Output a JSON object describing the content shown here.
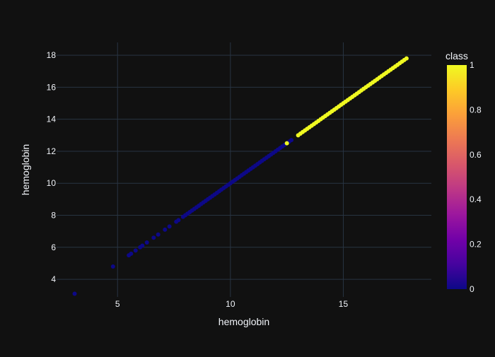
{
  "chart_data": {
    "type": "scatter",
    "title": "",
    "xlabel": "hemoglobin",
    "ylabel": "hemoglobin",
    "xlim": [
      2.3,
      18.9
    ],
    "ylim": [
      2.9,
      18.8
    ],
    "x_ticks": [
      5,
      10,
      15
    ],
    "y_ticks": [
      4,
      6,
      8,
      10,
      12,
      14,
      16,
      18
    ],
    "grid": true,
    "colorbar": {
      "title": "class",
      "range": [
        0,
        1
      ],
      "ticks": [
        0,
        0.2,
        0.4,
        0.6,
        0.8,
        1
      ],
      "colorscale": [
        "#0d0887",
        "#46039f",
        "#7201a8",
        "#9c179e",
        "#bd3786",
        "#d8576b",
        "#ed7953",
        "#fb9f3a",
        "#fdca26",
        "#f0f921"
      ]
    },
    "series": [
      {
        "class": 0,
        "x": [
          3.1,
          4.8,
          5.5,
          5.6,
          5.8,
          6.0,
          6.1,
          6.3,
          6.6,
          6.8,
          7.1,
          7.3,
          7.6,
          7.7,
          7.9,
          8.0,
          8.1,
          8.2,
          8.3,
          8.4,
          8.5,
          8.6,
          8.7,
          8.8,
          8.9,
          9.0,
          9.1,
          9.2,
          9.3,
          9.4,
          9.5,
          9.6,
          9.7,
          9.8,
          9.9,
          10.0,
          10.1,
          10.2,
          10.3,
          10.4,
          10.5,
          10.6,
          10.7,
          10.8,
          10.9,
          11.0,
          11.1,
          11.2,
          11.3,
          11.4,
          11.5,
          11.6,
          11.7,
          11.8,
          11.9,
          12.0,
          12.1,
          12.2,
          12.3,
          12.4,
          12.6,
          12.7
        ],
        "y": [
          3.1,
          4.8,
          5.5,
          5.6,
          5.8,
          6.0,
          6.1,
          6.3,
          6.6,
          6.8,
          7.1,
          7.3,
          7.6,
          7.7,
          7.9,
          8.0,
          8.1,
          8.2,
          8.3,
          8.4,
          8.5,
          8.6,
          8.7,
          8.8,
          8.9,
          9.0,
          9.1,
          9.2,
          9.3,
          9.4,
          9.5,
          9.6,
          9.7,
          9.8,
          9.9,
          10.0,
          10.1,
          10.2,
          10.3,
          10.4,
          10.5,
          10.6,
          10.7,
          10.8,
          10.9,
          11.0,
          11.1,
          11.2,
          11.3,
          11.4,
          11.5,
          11.6,
          11.7,
          11.8,
          11.9,
          12.0,
          12.1,
          12.2,
          12.3,
          12.4,
          12.6,
          12.7
        ]
      },
      {
        "class": 1,
        "x": [
          12.5,
          13.0,
          13.1,
          13.2,
          13.3,
          13.4,
          13.5,
          13.6,
          13.7,
          13.8,
          13.9,
          14.0,
          14.1,
          14.2,
          14.3,
          14.4,
          14.5,
          14.6,
          14.7,
          14.8,
          14.9,
          15.0,
          15.1,
          15.2,
          15.3,
          15.4,
          15.5,
          15.6,
          15.7,
          15.8,
          15.9,
          16.0,
          16.1,
          16.2,
          16.3,
          16.4,
          16.5,
          16.6,
          16.7,
          16.8,
          16.9,
          17.0,
          17.1,
          17.2,
          17.3,
          17.4,
          17.5,
          17.6,
          17.7,
          17.8
        ],
        "y": [
          12.5,
          13.0,
          13.1,
          13.2,
          13.3,
          13.4,
          13.5,
          13.6,
          13.7,
          13.8,
          13.9,
          14.0,
          14.1,
          14.2,
          14.3,
          14.4,
          14.5,
          14.6,
          14.7,
          14.8,
          14.9,
          15.0,
          15.1,
          15.2,
          15.3,
          15.4,
          15.5,
          15.6,
          15.7,
          15.8,
          15.9,
          16.0,
          16.1,
          16.2,
          16.3,
          16.4,
          16.5,
          16.6,
          16.7,
          16.8,
          16.9,
          17.0,
          17.1,
          17.2,
          17.3,
          17.4,
          17.5,
          17.6,
          17.7,
          17.8
        ]
      }
    ],
    "colors": {
      "background": "#111111",
      "grid": "#283442",
      "text": "#f2f5fa"
    }
  }
}
